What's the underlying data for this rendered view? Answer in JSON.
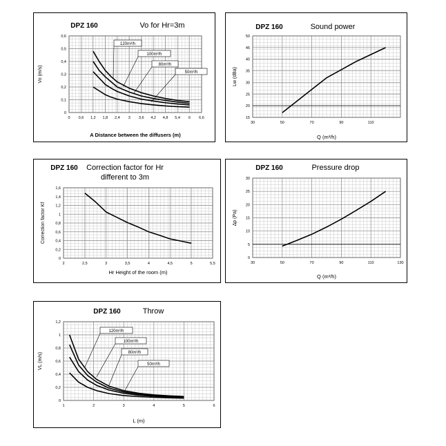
{
  "chart_data": [
    {
      "type": "line",
      "model": "DPZ 160",
      "title": "Vo for Hr=3m",
      "xlabel": "A Distance between the diffusers (m)",
      "ylabel": "Vo (m/s)",
      "xlim": [
        0,
        6.6
      ],
      "ylim": [
        0,
        0.6
      ],
      "xticks": [
        "0",
        "0,6",
        "1,2",
        "1,8",
        "2,4",
        "3",
        "3,6",
        "4,2",
        "4,8",
        "5,4",
        "6",
        "6,6"
      ],
      "yticks": [
        "0",
        "0,1",
        "0,2",
        "0,3",
        "0,4",
        "0,5",
        "0,6"
      ],
      "series": [
        {
          "name": "120m³/h",
          "x": [
            1.2,
            1.5,
            1.8,
            2.1,
            2.4,
            3.0,
            3.6,
            4.2,
            4.8,
            5.4,
            6.0
          ],
          "y": [
            0.48,
            0.4,
            0.33,
            0.28,
            0.24,
            0.19,
            0.155,
            0.13,
            0.11,
            0.095,
            0.085
          ]
        },
        {
          "name": "100m³/h",
          "x": [
            1.2,
            1.5,
            1.8,
            2.1,
            2.4,
            3.0,
            3.6,
            4.2,
            4.8,
            5.4,
            6.0
          ],
          "y": [
            0.4,
            0.33,
            0.28,
            0.24,
            0.2,
            0.16,
            0.13,
            0.11,
            0.095,
            0.082,
            0.072
          ]
        },
        {
          "name": "80m³/h",
          "x": [
            1.2,
            1.5,
            1.8,
            2.1,
            2.4,
            3.0,
            3.6,
            4.2,
            4.8,
            5.4,
            6.0
          ],
          "y": [
            0.32,
            0.27,
            0.22,
            0.19,
            0.165,
            0.13,
            0.105,
            0.09,
            0.077,
            0.067,
            0.06
          ]
        },
        {
          "name": "50m³/h",
          "x": [
            1.2,
            1.5,
            1.8,
            2.1,
            2.4,
            3.0,
            3.6,
            4.2,
            4.8,
            5.4,
            6.0
          ],
          "y": [
            0.2,
            0.17,
            0.14,
            0.12,
            0.105,
            0.085,
            0.07,
            0.06,
            0.052,
            0.046,
            0.042
          ]
        }
      ],
      "label_targets": [
        [
          2.2,
          0.265
        ],
        [
          2.7,
          0.205
        ],
        [
          3.2,
          0.145
        ],
        [
          4.1,
          0.085
        ]
      ]
    },
    {
      "type": "line",
      "model": "DPZ 160",
      "title": "Sound power",
      "xlabel": "Q (m³/h)",
      "ylabel": "Lw (dBa)",
      "xlim": [
        30,
        130
      ],
      "ylim": [
        15,
        50
      ],
      "xticks": [
        "30",
        "50",
        "70",
        "90",
        "110"
      ],
      "xtick_values": [
        30,
        50,
        70,
        90,
        110
      ],
      "yticks": [
        "15",
        "20",
        "25",
        "30",
        "35",
        "40",
        "45",
        "50"
      ],
      "reference_line": 20,
      "series": [
        {
          "name": "",
          "x": [
            50,
            60,
            70,
            80,
            90,
            100,
            110,
            120
          ],
          "y": [
            17,
            22,
            27,
            32,
            35.5,
            39,
            42,
            45
          ]
        }
      ]
    },
    {
      "type": "line",
      "model": "DPZ 160",
      "title": "Correction factor for Hr",
      "title_line2": "different to 3m",
      "xlabel": "Hr Height of the room (m)",
      "ylabel": "Correction factor Kf",
      "xlim": [
        2,
        5.5
      ],
      "ylim": [
        0,
        1.6
      ],
      "xticks": [
        "2",
        "2,5",
        "3",
        "3,5",
        "4",
        "4,5",
        "5",
        "5,5"
      ],
      "yticks": [
        "0",
        "0,2",
        "0,4",
        "0,6",
        "0,8",
        "1",
        "1,2",
        "1,4",
        "1,6"
      ],
      "series": [
        {
          "name": "",
          "x": [
            2.5,
            2.75,
            3.0,
            3.25,
            3.5,
            3.75,
            4.0,
            4.25,
            4.5,
            4.75,
            5.0
          ],
          "y": [
            1.48,
            1.28,
            1.05,
            0.93,
            0.81,
            0.71,
            0.6,
            0.52,
            0.44,
            0.39,
            0.34
          ]
        }
      ]
    },
    {
      "type": "line",
      "model": "DPZ 160",
      "title": "Pressure drop",
      "xlabel": "Q (m³/h)",
      "ylabel": "Δp (Pa)",
      "xlim": [
        30,
        130
      ],
      "ylim": [
        0,
        30
      ],
      "xticks": [
        "30",
        "50",
        "70",
        "90",
        "110",
        "130"
      ],
      "yticks": [
        "0",
        "5",
        "10",
        "15",
        "20",
        "25",
        "30"
      ],
      "reference_line": 5,
      "series": [
        {
          "name": "",
          "x": [
            50,
            60,
            70,
            80,
            90,
            100,
            110,
            120
          ],
          "y": [
            4.3,
            6.5,
            8.8,
            11.5,
            14.5,
            17.8,
            21.2,
            25
          ]
        }
      ]
    },
    {
      "type": "line",
      "model": "DPZ 160",
      "title": "Throw",
      "xlabel": "L (m)",
      "ylabel": "VL (m/s)",
      "xlim": [
        1,
        6
      ],
      "ylim": [
        0,
        1.2
      ],
      "xticks": [
        "1",
        "2",
        "3",
        "4",
        "5",
        "6"
      ],
      "yticks": [
        "0",
        "0,2",
        "0,4",
        "0,6",
        "0,8",
        "1",
        "1,2"
      ],
      "series": [
        {
          "name": "120m³/h",
          "x": [
            1.2,
            1.5,
            1.8,
            2.1,
            2.5,
            3.0,
            3.5,
            4.0,
            4.5,
            5.0
          ],
          "y": [
            1.0,
            0.63,
            0.44,
            0.32,
            0.22,
            0.15,
            0.11,
            0.085,
            0.07,
            0.06
          ]
        },
        {
          "name": "100m³/h",
          "x": [
            1.2,
            1.5,
            1.8,
            2.1,
            2.5,
            3.0,
            3.5,
            4.0,
            4.5,
            5.0
          ],
          "y": [
            0.85,
            0.54,
            0.38,
            0.28,
            0.19,
            0.13,
            0.095,
            0.075,
            0.062,
            0.053
          ]
        },
        {
          "name": "80m³/h",
          "x": [
            1.2,
            1.5,
            1.8,
            2.1,
            2.5,
            3.0,
            3.5,
            4.0,
            4.5,
            5.0
          ],
          "y": [
            0.66,
            0.44,
            0.31,
            0.23,
            0.16,
            0.11,
            0.08,
            0.063,
            0.052,
            0.045
          ]
        },
        {
          "name": "50m³/h",
          "x": [
            1.2,
            1.5,
            1.8,
            2.1,
            2.5,
            3.0,
            3.5,
            4.0,
            4.5,
            5.0
          ],
          "y": [
            0.42,
            0.28,
            0.2,
            0.15,
            0.105,
            0.075,
            0.058,
            0.047,
            0.04,
            0.035
          ]
        }
      ],
      "label_targets": [
        [
          1.7,
          0.5
        ],
        [
          2.1,
          0.36
        ],
        [
          2.5,
          0.22
        ],
        [
          3.0,
          0.12
        ]
      ]
    }
  ]
}
